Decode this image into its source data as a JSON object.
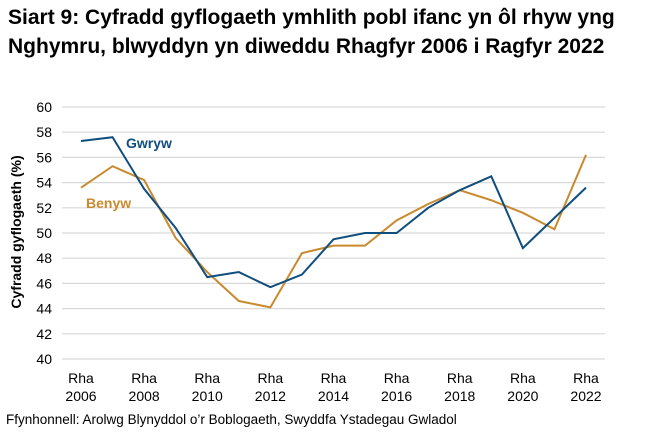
{
  "chart_data": {
    "type": "line",
    "title": "Siart 9: Cyfradd gyflogaeth ymhlith pobl ifanc yn ôl rhyw yng Nghymru, blwyddyn yn diweddu Rhagfyr 2006 i Ragfyr 2022",
    "ylabel": "Cyfradd gyflogaeth (%)",
    "xlabel": "",
    "ylim": [
      40,
      60
    ],
    "yticks": [
      40,
      42,
      44,
      46,
      48,
      50,
      52,
      54,
      56,
      58,
      60
    ],
    "grid": true,
    "x": [
      2006,
      2007,
      2008,
      2009,
      2010,
      2011,
      2012,
      2013,
      2014,
      2015,
      2016,
      2017,
      2018,
      2019,
      2020,
      2021,
      2022
    ],
    "xtick_labels": [
      {
        "line1": "Rha",
        "line2": "2006"
      },
      {
        "line1": "Rha",
        "line2": "2008"
      },
      {
        "line1": "Rha",
        "line2": "2010"
      },
      {
        "line1": "Rha",
        "line2": "2012"
      },
      {
        "line1": "Rha",
        "line2": "2014"
      },
      {
        "line1": "Rha",
        "line2": "2016"
      },
      {
        "line1": "Rha",
        "line2": "2018"
      },
      {
        "line1": "Rha",
        "line2": "2020"
      },
      {
        "line1": "Rha",
        "line2": "2022"
      }
    ],
    "series": [
      {
        "name": "Gwryw",
        "color": "#104e7f",
        "values": [
          57.3,
          57.6,
          53.5,
          50.4,
          46.5,
          46.9,
          45.7,
          46.7,
          49.5,
          50.0,
          50.0,
          52.0,
          53.4,
          54.5,
          48.8,
          51.2,
          53.6
        ]
      },
      {
        "name": "Benyw",
        "color": "#c98a2e",
        "values": [
          53.6,
          55.3,
          54.2,
          49.6,
          46.9,
          44.6,
          44.1,
          48.4,
          49.0,
          49.0,
          51.0,
          52.3,
          53.4,
          52.6,
          51.6,
          50.3,
          56.2
        ]
      }
    ],
    "legend": "inline labels near series start"
  },
  "source": "Ffynhonnell: Arolwg Blynyddol o’r Boblogaeth, Swyddfa Ystadegau Gwladol"
}
